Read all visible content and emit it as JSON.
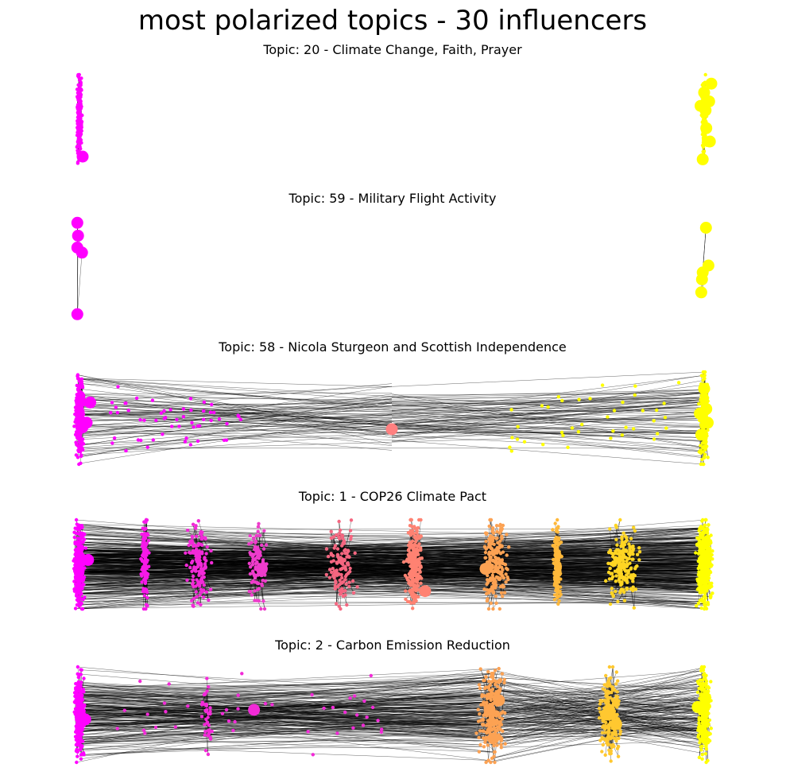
{
  "figure": {
    "title": "most polarized topics - 30 influencers"
  },
  "chart_data": [
    {
      "type": "network",
      "title": "Topic: 20 - Climate Change, Faith, Prayer",
      "axes": "off",
      "grid": false,
      "color_scale": [
        "#ff00ff",
        "#ffff00"
      ],
      "communities": [
        {
          "pos": 0.0,
          "color": "#ff00ff",
          "nodes": 220,
          "spread": 0.35,
          "big": [
            [
              0.45,
              0.92
            ]
          ]
        },
        {
          "pos": 1.0,
          "color": "#ffff00",
          "nodes": 140,
          "spread": 0.45,
          "big": [
            [
              0.0,
              0.2
            ],
            [
              0.7,
              0.3
            ],
            [
              0.3,
              0.6
            ],
            [
              0.8,
              0.75
            ],
            [
              -0.2,
              0.95
            ],
            [
              0.2,
              0.4
            ],
            [
              -0.5,
              0.35
            ],
            [
              1.0,
              0.1
            ]
          ]
        }
      ],
      "bridges": []
    },
    {
      "type": "network",
      "title": "Topic: 59 - Military Flight Activity",
      "axes": "off",
      "grid": false,
      "color_scale": [
        "#ff00ff",
        "#ffff00"
      ],
      "communities": [
        {
          "pos": 0.0,
          "color": "#ff00ff",
          "nodes": 0,
          "spread": 0.3,
          "big": [
            [
              -0.3,
              0.05
            ],
            [
              -0.2,
              0.18
            ],
            [
              -0.3,
              0.3
            ],
            [
              0.35,
              0.35
            ],
            [
              -0.3,
              0.97
            ]
          ]
        },
        {
          "pos": 1.0,
          "color": "#ffff00",
          "nodes": 0,
          "spread": 0.3,
          "big": [
            [
              0.25,
              0.1
            ],
            [
              0.6,
              0.48
            ],
            [
              -0.2,
              0.55
            ],
            [
              -0.3,
              0.62
            ],
            [
              -0.4,
              0.75
            ]
          ]
        }
      ],
      "bridges": []
    },
    {
      "type": "network",
      "title": "Topic: 58 - Nicola Sturgeon and Scottish Independence",
      "axes": "off",
      "grid": false,
      "color_scale": [
        "#ff00ff",
        "#ffff00"
      ],
      "communities": [
        {
          "pos": 0.0,
          "color": "#ff00ff",
          "nodes": 260,
          "spread": 0.85,
          "big": [
            [
              1.5,
              0.33
            ],
            [
              1.0,
              0.55
            ],
            [
              0.4,
              0.6
            ]
          ]
        },
        {
          "pos": 0.5,
          "color": "#ff8080",
          "nodes": 0,
          "spread": 0.3,
          "big": [
            [
              0.0,
              0.62
            ]
          ]
        },
        {
          "pos": 1.0,
          "color": "#ffff00",
          "nodes": 200,
          "spread": 0.85,
          "big": [
            [
              0.0,
              0.18
            ],
            [
              -0.6,
              0.45
            ],
            [
              -0.4,
              0.68
            ],
            [
              0.5,
              0.55
            ],
            [
              0.3,
              0.4
            ]
          ]
        }
      ],
      "bridges": [
        {
          "from": 0.02,
          "to": 0.5,
          "count": 60
        },
        {
          "from": 0.98,
          "to": 0.5,
          "count": 60
        },
        {
          "from": 0.02,
          "to": 0.98,
          "count": 25
        }
      ],
      "scatter_nodes": [
        {
          "range": [
            0.04,
            0.26
          ],
          "color": "#ff00ff",
          "count": 55
        },
        {
          "range": [
            0.68,
            0.96
          ],
          "color": "#ffff00",
          "count": 40
        }
      ]
    },
    {
      "type": "network",
      "title": "Topic: 1 - COP26 Climate Pact",
      "axes": "off",
      "grid": false,
      "color_scale": [
        "#ff00ff",
        "#ffff00"
      ],
      "communities": [
        {
          "pos": 0.0,
          "color": "#ff00ff",
          "nodes": 320,
          "spread": 1.0,
          "big": [
            [
              1.2,
              0.45
            ]
          ]
        },
        {
          "pos": 0.105,
          "color": "#f719e8",
          "nodes": 120,
          "spread": 0.7,
          "big": []
        },
        {
          "pos": 0.19,
          "color": "#f22ad7",
          "nodes": 140,
          "spread": 2.2,
          "big": []
        },
        {
          "pos": 0.285,
          "color": "#ee3ccb",
          "nodes": 110,
          "spread": 1.8,
          "big": [
            [
              0.6,
              0.55
            ]
          ]
        },
        {
          "pos": 0.42,
          "color": "#f56680",
          "nodes": 130,
          "spread": 2.4,
          "big": []
        },
        {
          "pos": 0.535,
          "color": "#ff8272",
          "nodes": 260,
          "spread": 1.5,
          "big": [
            [
              1.6,
              0.8
            ]
          ]
        },
        {
          "pos": 0.665,
          "color": "#fca253",
          "nodes": 220,
          "spread": 2.6,
          "big": [
            [
              -1.3,
              0.55
            ]
          ]
        },
        {
          "pos": 0.765,
          "color": "#ffb83a",
          "nodes": 180,
          "spread": 0.7,
          "big": []
        },
        {
          "pos": 0.87,
          "color": "#ffd523",
          "nodes": 200,
          "spread": 3.0,
          "big": []
        },
        {
          "pos": 1.0,
          "color": "#ffff00",
          "nodes": 420,
          "spread": 1.4,
          "big": []
        }
      ],
      "bridges": [
        {
          "from": 0.0,
          "to": 1.0,
          "count": 420
        }
      ]
    },
    {
      "type": "network",
      "title": "Topic: 2 - Carbon Emission Reduction",
      "axes": "off",
      "grid": false,
      "color_scale": [
        "#ff00ff",
        "#ffff00"
      ],
      "communities": [
        {
          "pos": 0.0,
          "color": "#ff00ff",
          "nodes": 300,
          "spread": 0.9,
          "big": [
            [
              0.8,
              0.55
            ]
          ]
        },
        {
          "pos": 0.205,
          "color": "#f22ad7",
          "nodes": 35,
          "spread": 1.0,
          "big": [
            [
              6.5,
              0.45
            ]
          ]
        },
        {
          "pos": 0.66,
          "color": "#fca253",
          "nodes": 260,
          "spread": 2.4,
          "big": [
            [
              -0.3,
              0.45
            ],
            [
              0.2,
              0.75
            ],
            [
              1.0,
              0.35
            ]
          ]
        },
        {
          "pos": 0.85,
          "color": "#ffc830",
          "nodes": 240,
          "spread": 2.0,
          "big": [
            [
              -0.5,
              0.5
            ],
            [
              0.8,
              0.6
            ]
          ]
        },
        {
          "pos": 1.0,
          "color": "#ffff00",
          "nodes": 300,
          "spread": 1.2,
          "big": [
            [
              -0.9,
              0.42
            ]
          ]
        }
      ],
      "bridges": [
        {
          "from": 0.0,
          "to": 0.72,
          "count": 220
        },
        {
          "from": 0.55,
          "to": 1.0,
          "count": 160
        }
      ],
      "scatter_nodes": [
        {
          "range": [
            0.06,
            0.52
          ],
          "color": "#f22ad7",
          "count": 45
        }
      ]
    }
  ]
}
